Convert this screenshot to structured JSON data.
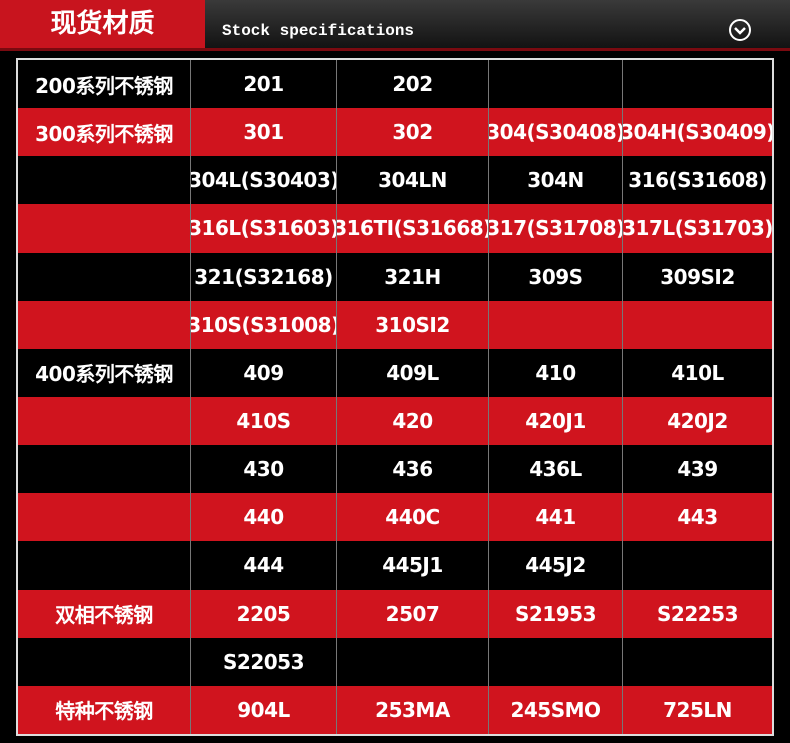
{
  "header": {
    "title": "现货材质",
    "subtitle": "Stock specifications"
  },
  "table": {
    "rows": [
      [
        "200系列不锈钢",
        "201",
        "202",
        null,
        null
      ],
      [
        "300系列不锈钢",
        "301",
        "302",
        "304(S30408)",
        "304H(S30409)"
      ],
      [
        null,
        "304L(S30403)",
        "304LN",
        "304N",
        "316(S31608)"
      ],
      [
        null,
        "316L(S31603)",
        "316TI(S31668)",
        "317(S31708)",
        "317L(S31703)"
      ],
      [
        null,
        "321(S32168)",
        "321H",
        "309S",
        "309SI2"
      ],
      [
        null,
        "310S(S31008)",
        "310SI2",
        null,
        null
      ],
      [
        "400系列不锈钢",
        "409",
        "409L",
        "410",
        "410L"
      ],
      [
        null,
        "410S",
        "420",
        "420J1",
        "420J2"
      ],
      [
        null,
        "430",
        "436",
        "436L",
        "439"
      ],
      [
        null,
        "440",
        "440C",
        "441",
        "443"
      ],
      [
        null,
        "444",
        "445J1",
        "445J2",
        null
      ],
      [
        "双相不锈钢",
        "2205",
        "2507",
        "S21953",
        "S22253"
      ],
      [
        null,
        "S22053",
        null,
        null,
        null
      ],
      [
        "特种不锈钢",
        "904L",
        "253MA",
        "245SMO",
        "725LN"
      ]
    ]
  }
}
